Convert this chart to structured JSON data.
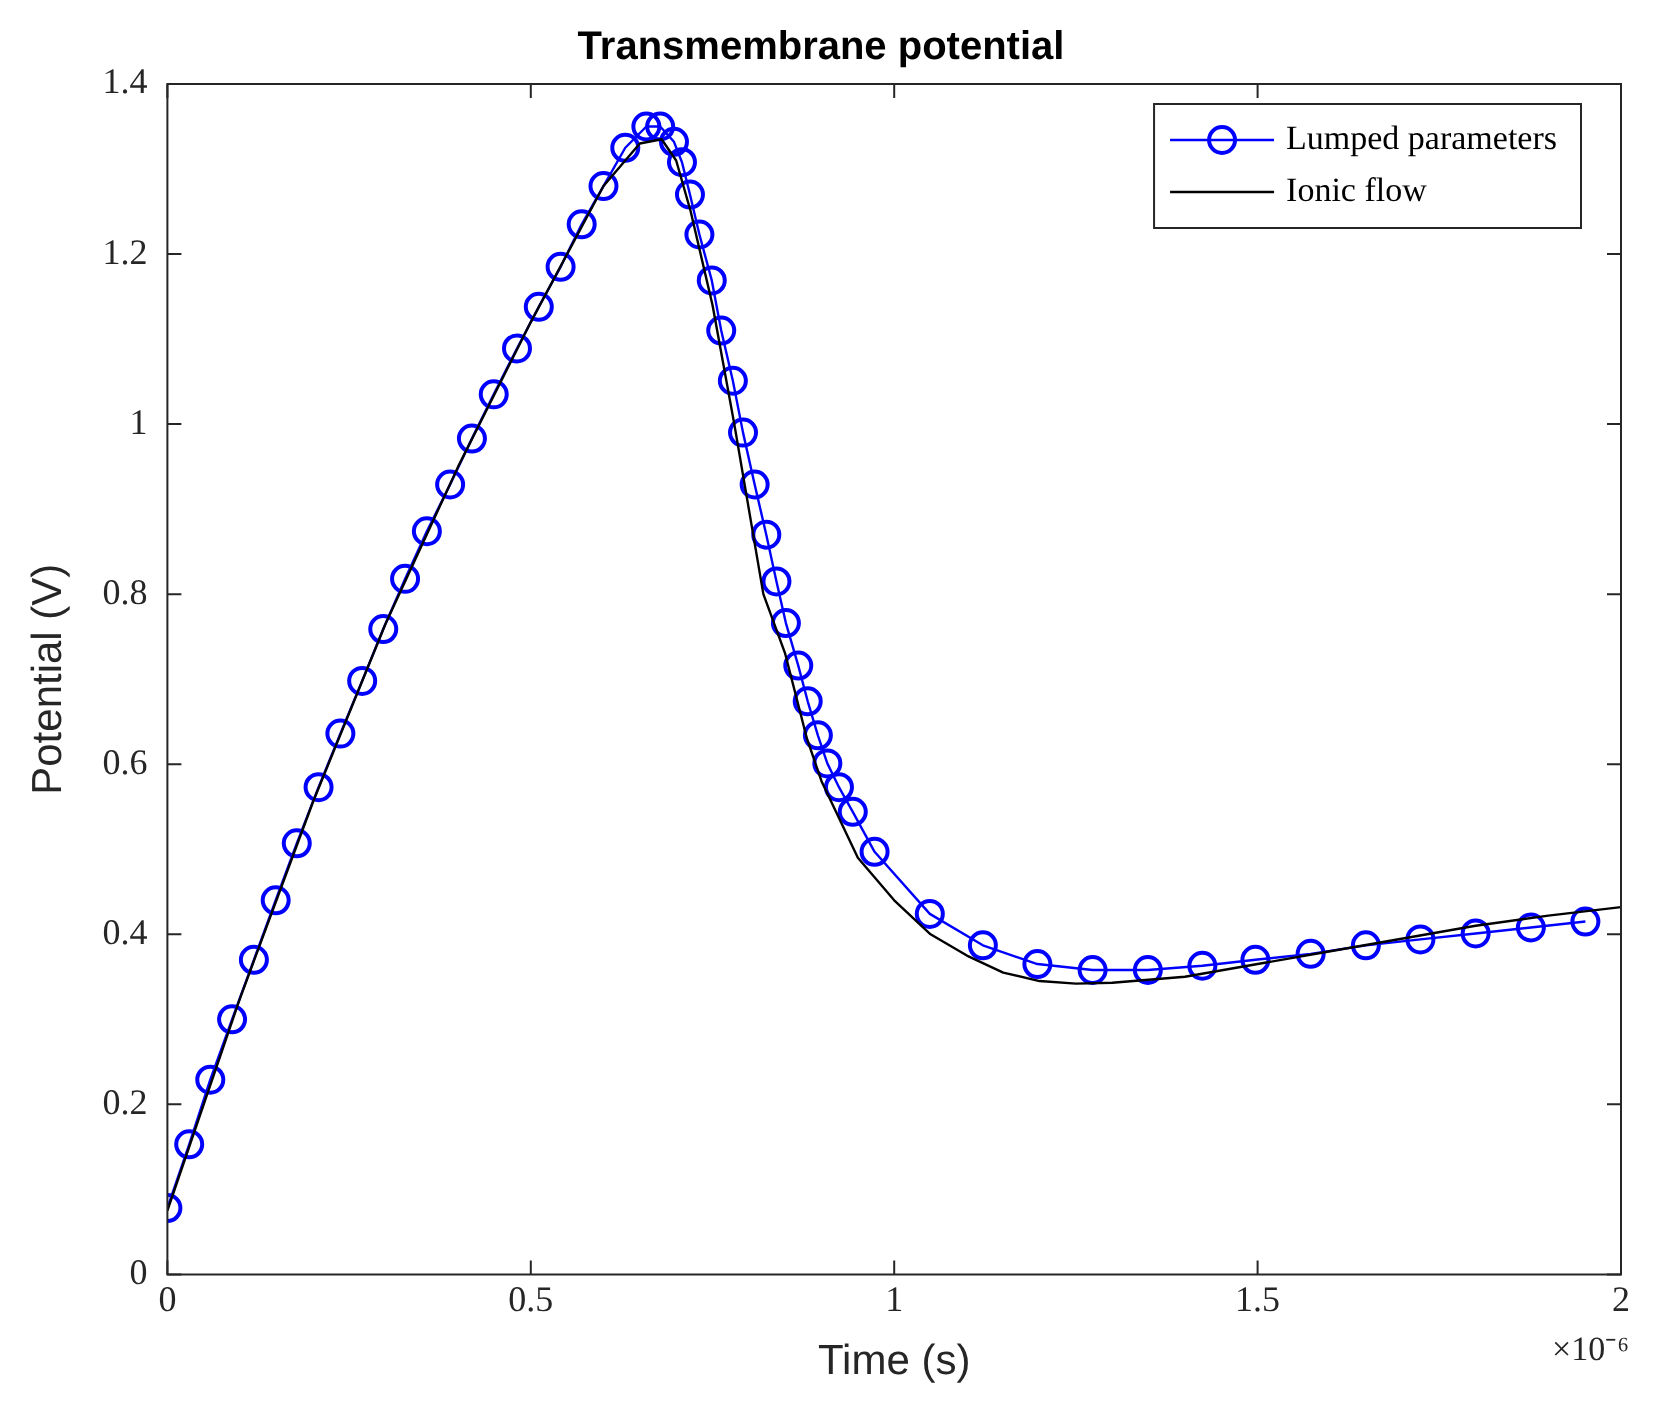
{
  "chart_data": {
    "type": "line",
    "title": "Transmembrane potential",
    "xlabel": "Time (s)",
    "ylabel": "Potential (V)",
    "xlim": [
      0,
      2
    ],
    "xticks": [
      0,
      0.5,
      1,
      1.5,
      2
    ],
    "ylim": [
      0,
      1.4
    ],
    "yticks": [
      0,
      0.2,
      0.4,
      0.6,
      0.8,
      1,
      1.2,
      1.4
    ],
    "grid": false,
    "legend": "top right",
    "annotations": [
      "×10⁻⁶"
    ],
    "series": [
      {
        "name": "Lumped parameters",
        "color": "#0000ff",
        "marker": "circle",
        "line_style": "solid",
        "x": [
          0,
          0.03,
          0.059,
          0.089,
          0.119,
          0.149,
          0.178,
          0.208,
          0.238,
          0.268,
          0.297,
          0.327,
          0.357,
          0.389,
          0.419,
          0.449,
          0.481,
          0.511,
          0.541,
          0.57,
          0.6,
          0.63,
          0.659,
          0.678,
          0.697,
          0.708,
          0.719,
          0.732,
          0.749,
          0.762,
          0.778,
          0.792,
          0.808,
          0.824,
          0.838,
          0.851,
          0.868,
          0.881,
          0.895,
          0.908,
          0.924,
          0.943,
          0.973,
          1.049,
          1.122,
          1.197,
          1.273,
          1.349,
          1.424,
          1.497,
          1.573,
          1.649,
          1.724,
          1.8,
          1.876,
          1.951
        ],
        "values": [
          0.078,
          0.153,
          0.229,
          0.3,
          0.37,
          0.44,
          0.507,
          0.573,
          0.636,
          0.698,
          0.759,
          0.818,
          0.874,
          0.929,
          0.983,
          1.035,
          1.089,
          1.138,
          1.185,
          1.235,
          1.28,
          1.325,
          1.35,
          1.35,
          1.332,
          1.308,
          1.27,
          1.223,
          1.169,
          1.11,
          1.051,
          0.99,
          0.929,
          0.87,
          0.815,
          0.766,
          0.716,
          0.674,
          0.634,
          0.601,
          0.573,
          0.544,
          0.497,
          0.424,
          0.387,
          0.365,
          0.358,
          0.358,
          0.363,
          0.37,
          0.377,
          0.387,
          0.394,
          0.401,
          0.408,
          0.415
        ]
      },
      {
        "name": "Ionic flow",
        "color": "#000000",
        "marker": "none",
        "line_style": "solid",
        "x": [
          0,
          0.1,
          0.2,
          0.3,
          0.4,
          0.5,
          0.6,
          0.65,
          0.68,
          0.7,
          0.72,
          0.75,
          0.78,
          0.8,
          0.82,
          0.85,
          0.88,
          0.9,
          0.95,
          1.0,
          1.05,
          1.1,
          1.15,
          1.2,
          1.25,
          1.3,
          1.4,
          1.5,
          1.6,
          1.7,
          1.8,
          1.9,
          2.0
        ],
        "values": [
          0.075,
          0.325,
          0.555,
          0.765,
          0.95,
          1.12,
          1.28,
          1.33,
          1.335,
          1.31,
          1.25,
          1.14,
          1.0,
          0.9,
          0.8,
          0.73,
          0.63,
          0.58,
          0.49,
          0.44,
          0.4,
          0.375,
          0.355,
          0.345,
          0.342,
          0.343,
          0.35,
          0.365,
          0.38,
          0.395,
          0.41,
          0.422,
          0.432
        ]
      }
    ]
  }
}
